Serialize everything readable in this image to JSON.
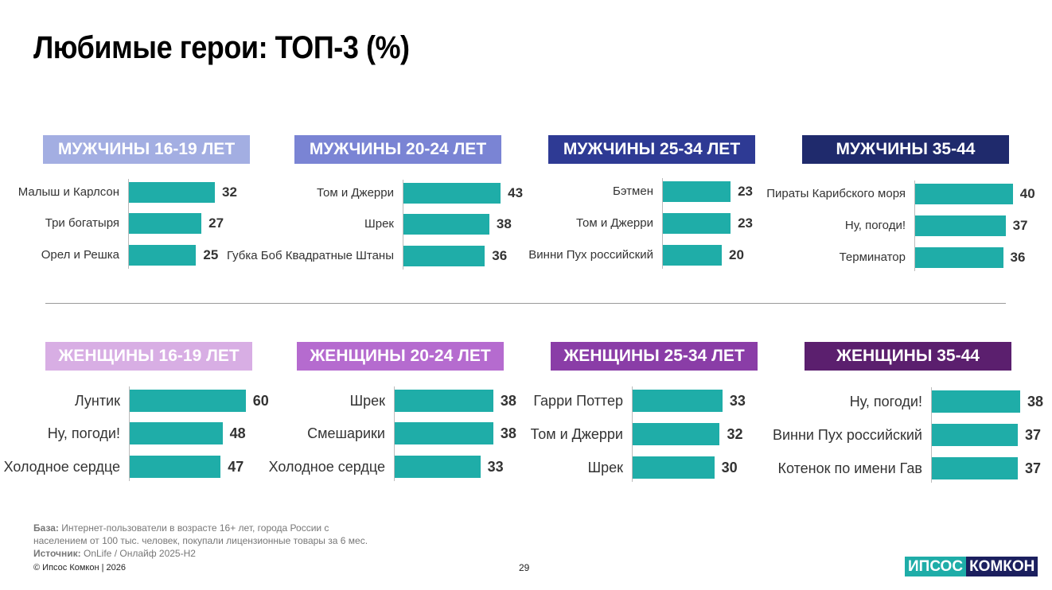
{
  "title": "Любимые герои: ТОП-3 (%)",
  "colors": {
    "bar": "#1fada8",
    "logo_left": "#1fada8",
    "logo_right": "#1b1f5e"
  },
  "chart_data": [
    {
      "type": "bar",
      "title": "МУЖЧИНЫ 16-19 ЛЕТ",
      "header_color": "#a3aee2",
      "categories": [
        "Малыш и Карлсон",
        "Три богатыря",
        "Орел и Решка"
      ],
      "values": [
        32,
        27,
        25
      ]
    },
    {
      "type": "bar",
      "title": "МУЖЧИНЫ 20-24 ЛЕТ",
      "header_color": "#7a84d4",
      "categories": [
        "Том и Джерри",
        "Шрек",
        "Губка Боб Квадратные Штаны"
      ],
      "values": [
        43,
        38,
        36
      ]
    },
    {
      "type": "bar",
      "title": "МУЖЧИНЫ 25-34 ЛЕТ",
      "header_color": "#2e3a94",
      "categories": [
        "Бэтмен",
        "Том и Джерри",
        "Винни Пух российский"
      ],
      "values": [
        23,
        23,
        20
      ]
    },
    {
      "type": "bar",
      "title": "МУЖЧИНЫ 35-44",
      "header_color": "#1f2a6c",
      "categories": [
        "Пираты Карибского моря",
        "Ну, погоди!",
        "Терминатор"
      ],
      "values": [
        40,
        37,
        36
      ]
    },
    {
      "type": "bar",
      "title": "ЖЕНЩИНЫ 16-19 ЛЕТ",
      "header_color": "#d8aee4",
      "categories": [
        "Лунтик",
        "Ну, погоди!",
        "Холодное сердце"
      ],
      "values": [
        60,
        48,
        47
      ]
    },
    {
      "type": "bar",
      "title": "ЖЕНЩИНЫ 20-24 ЛЕТ",
      "header_color": "#b56bcf",
      "categories": [
        "Шрек",
        "Смешарики",
        "Холодное сердце"
      ],
      "values": [
        38,
        38,
        33
      ]
    },
    {
      "type": "bar",
      "title": "ЖЕНЩИНЫ 25-34 ЛЕТ",
      "header_color": "#8a3da7",
      "categories": [
        "Гарри Поттер",
        "Том и Джерри",
        "Шрек"
      ],
      "values": [
        33,
        32,
        30
      ]
    },
    {
      "type": "bar",
      "title": "ЖЕНЩИНЫ 35-44",
      "header_color": "#5b1f6e",
      "categories": [
        "Ну, погоди!",
        "Винни Пух российский",
        "Котенок по имени Гав"
      ],
      "values": [
        38,
        37,
        37
      ]
    }
  ],
  "footer": {
    "base_label": "База:",
    "base_text": "Интернет-пользователи в возрасте 16+ лет, города России с населением от 100 тыс. человек, покупали лицензионные товары за 6 мес.",
    "source_label": "Источник:",
    "source_text": "OnLife / Онлайф  2025-H2",
    "copyright": "© Ипсос Комкон | 2026",
    "page_number": "29"
  },
  "logo": {
    "left": "ИПСОС",
    "right": "КОМКОН"
  }
}
